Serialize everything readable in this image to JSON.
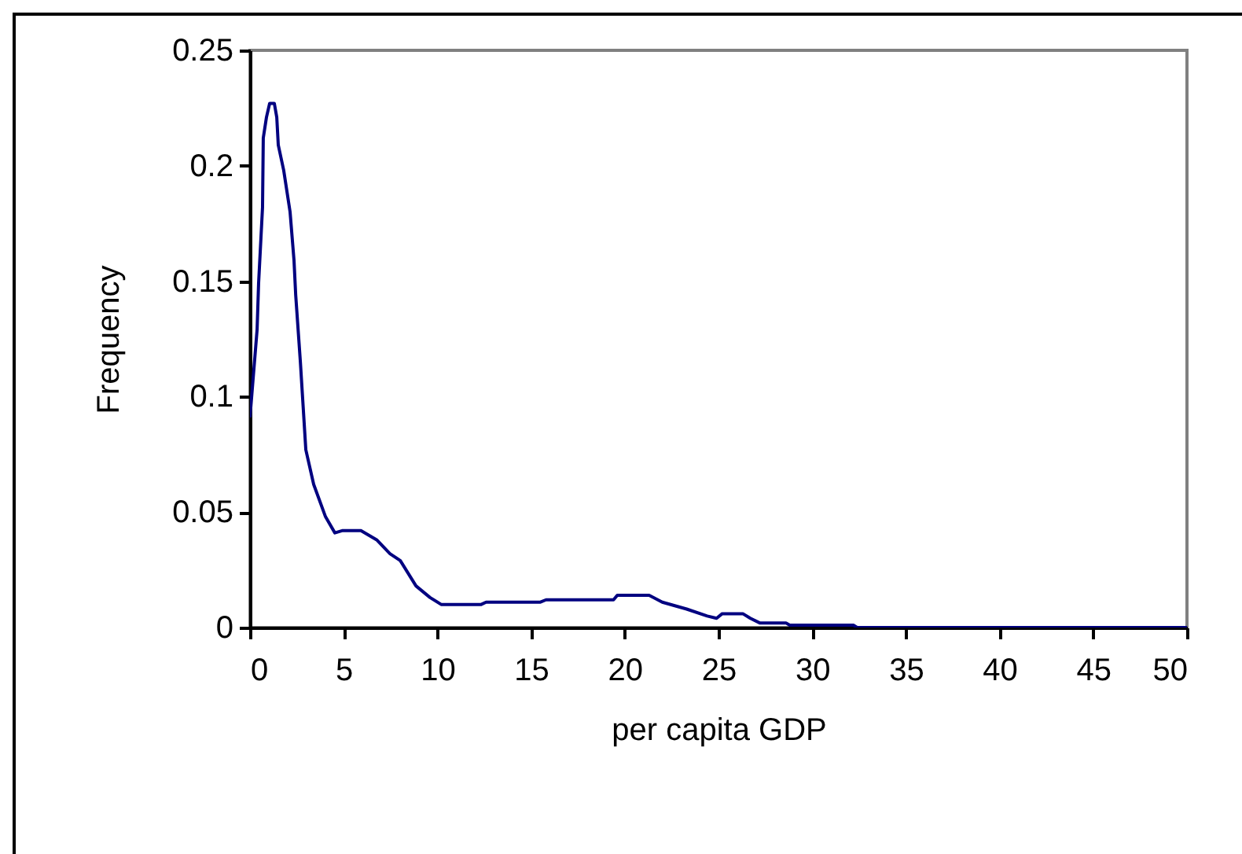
{
  "chart_data": {
    "type": "line",
    "xlabel": "per capita GDP",
    "ylabel": "Frequency",
    "x": [
      0,
      0.38,
      0.46,
      0.67,
      0.71,
      0.88,
      1.05,
      1.3,
      1.43,
      1.51,
      1.8,
      2.14,
      2.35,
      2.44,
      2.69,
      2.98,
      3.4,
      4.03,
      4.53,
      4.95,
      5.92,
      6.76,
      7.47,
      8.02,
      8.86,
      9.61,
      10.2,
      12.34,
      12.6,
      15.5,
      15.8,
      19.4,
      19.6,
      21.3,
      22,
      23.3,
      24.4,
      24.9,
      25.2,
      26.3,
      26.7,
      27.2,
      28.6,
      28.8,
      32.2,
      32.4,
      50
    ],
    "series": [
      {
        "color": "#000080",
        "values": [
          0.091,
          0.129,
          0.149,
          0.182,
          0.212,
          0.221,
          0.227,
          0.227,
          0.221,
          0.209,
          0.198,
          0.18,
          0.159,
          0.144,
          0.115,
          0.077,
          0.062,
          0.048,
          0.041,
          0.042,
          0.042,
          0.038,
          0.032,
          0.029,
          0.018,
          0.013,
          0.01,
          0.01,
          0.011,
          0.011,
          0.012,
          0.012,
          0.014,
          0.014,
          0.011,
          0.008,
          0.005,
          0.004,
          0.006,
          0.006,
          0.004,
          0.002,
          0.002,
          0.001,
          0.001,
          0,
          0
        ]
      }
    ],
    "xlim": [
      0,
      50
    ],
    "xticks": [
      0,
      5,
      10,
      15,
      20,
      25,
      30,
      35,
      40,
      45,
      50
    ],
    "ylim": [
      0,
      0.25
    ],
    "yticks": [
      0,
      0.05,
      0.1,
      0.15,
      0.2,
      0.25
    ],
    "grid": false,
    "marker": "none",
    "line_style": "solid"
  }
}
